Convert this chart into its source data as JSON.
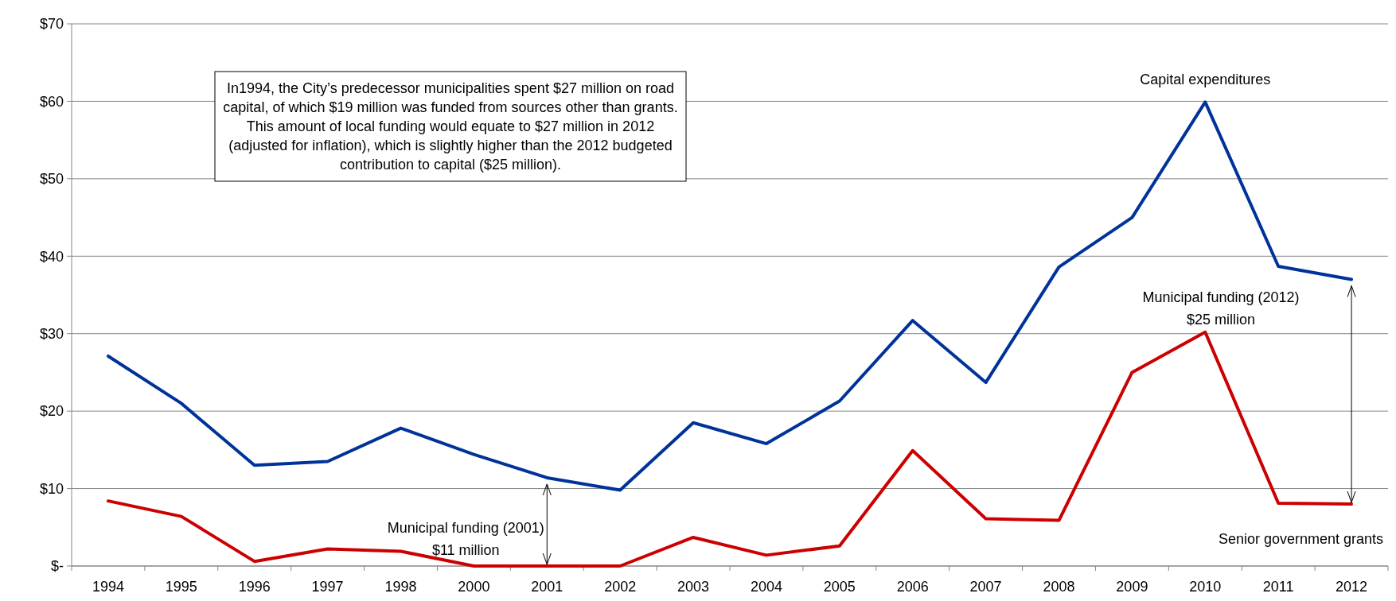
{
  "chart_data": {
    "type": "line",
    "categories": [
      "1994",
      "1995",
      "1996",
      "1997",
      "1998",
      "2000",
      "2001",
      "2002",
      "2003",
      "2004",
      "2005",
      "2006",
      "2007",
      "2008",
      "2009",
      "2010",
      "2011",
      "2012"
    ],
    "series": [
      {
        "name": "Capital expenditures",
        "color": "#003399",
        "values": [
          27.1,
          21,
          13,
          13.5,
          17.8,
          14.4,
          11.4,
          9.8,
          18.5,
          15.8,
          21.3,
          31.7,
          23.7,
          38.6,
          45,
          59.9,
          38.7,
          37
        ]
      },
      {
        "name": "Senior government grants",
        "color": "#cc0000",
        "values": [
          8.4,
          6.4,
          0.6,
          2.2,
          1.9,
          0,
          0,
          0,
          3.7,
          1.4,
          2.6,
          14.9,
          6.1,
          5.9,
          25,
          30.2,
          8.1,
          8
        ]
      }
    ],
    "ylim": [
      0,
      70
    ],
    "yticks": [
      {
        "value": 0,
        "label": "$-"
      },
      {
        "value": 10,
        "label": "$10"
      },
      {
        "value": 20,
        "label": "$20"
      },
      {
        "value": 30,
        "label": "$30"
      },
      {
        "value": 40,
        "label": "$40"
      },
      {
        "value": 50,
        "label": "$50"
      },
      {
        "value": 60,
        "label": "$60"
      },
      {
        "value": 70,
        "label": "$70"
      }
    ],
    "grid": "y",
    "legend": false,
    "marker": "none",
    "line_style": "solid",
    "annotations": [
      "In1994, the City’s predecessor municipalities spent  $27 million on road\ncapital, of which $19 million was funded from sources other than grants.\nThis amount of local funding would equate to $27 million in 2012\n(adjusted for inflation), which is slightly higher than the 2012 budgeted\ncontribution to capital ($25 million).",
      "Municipal funding (2001)\n$11 million",
      "Municipal funding (2012)\n$25 million"
    ]
  }
}
